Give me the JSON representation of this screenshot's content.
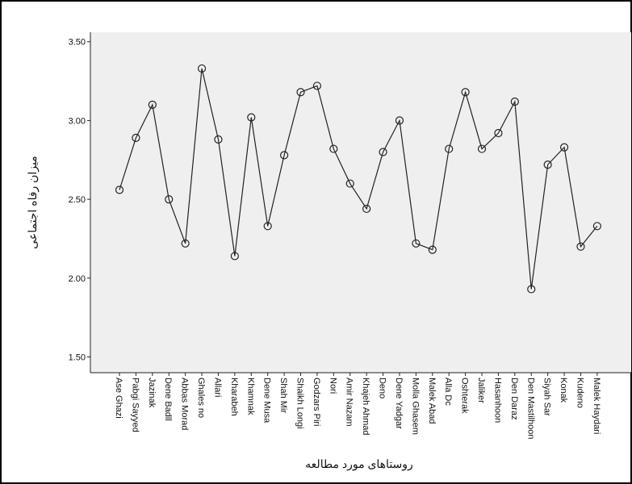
{
  "chart_data": {
    "type": "line",
    "y_label": "میزان رفاه اجتماعی",
    "x_label": "روستاهای مورد مطالعه",
    "categories": [
      "Ase Ghazi",
      "Pabgi Sayyed",
      "Jazinak",
      "Dene Badll",
      "Abbas Morad",
      "Ghales no",
      "Allari",
      "Kharabeh",
      "Khamnak",
      "Dene Musa",
      "Shah Mir",
      "Shaikh Longi",
      "Godzars Piri",
      "Nori",
      "Amir Nazam",
      "Khajeh Ahmad",
      "Deno",
      "Dene Yadgar",
      "Molla Ghasem",
      "Malek Abad",
      "Alla Dc",
      "Oshterak",
      "Jaliker",
      "Hasanhoon",
      "Den Daraz",
      "Den Mastilhoon",
      "Siyah Sar",
      "Konak",
      "Kudeno",
      "Malek Haydari"
    ],
    "values": [
      2.56,
      2.89,
      3.1,
      2.5,
      2.22,
      3.33,
      2.88,
      2.14,
      3.02,
      2.33,
      2.78,
      3.18,
      3.22,
      2.82,
      2.6,
      2.44,
      2.8,
      3.0,
      2.22,
      2.18,
      2.82,
      3.18,
      2.82,
      2.92,
      3.12,
      1.93,
      2.72,
      2.83,
      2.2,
      2.33
    ],
    "color": "#222222",
    "ylim": [
      1.4,
      3.56
    ],
    "yticks": [
      {
        "value": 1.5,
        "label": "1.50"
      },
      {
        "value": 2,
        "label": "2.00"
      },
      {
        "value": 2.5,
        "label": "2.50"
      },
      {
        "value": 3,
        "label": "3.00"
      },
      {
        "value": 3.5,
        "label": "3.50"
      }
    ],
    "grid": false
  }
}
